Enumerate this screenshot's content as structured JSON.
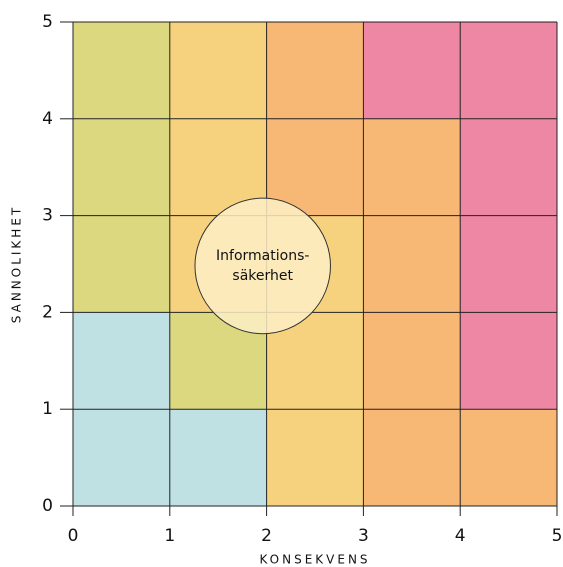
{
  "chart_data": {
    "type": "bubble",
    "xlabel": "KONSEKVENS",
    "ylabel": "SANNOLIKHET",
    "xlim": [
      0,
      5
    ],
    "ylim": [
      0,
      5
    ],
    "xticks": [
      0,
      1,
      2,
      3,
      4,
      5
    ],
    "yticks": [
      0,
      1,
      2,
      3,
      4,
      5
    ],
    "grid": true,
    "cell_colors": [
      [
        "#bfe1e3",
        "#bfe1e3",
        "#f7d27e",
        "#f6b874",
        "#f6b874"
      ],
      [
        "#bfe1e3",
        "#dcd880",
        "#f7d27e",
        "#f6b874",
        "#ee87a4"
      ],
      [
        "#dcd880",
        "#f7d27e",
        "#f7d27e",
        "#f6b874",
        "#ee87a4"
      ],
      [
        "#dcd880",
        "#f7d27e",
        "#f6b874",
        "#f6b874",
        "#ee87a4"
      ],
      [
        "#dcd880",
        "#f7d27e",
        "#f6b874",
        "#ee87a4",
        "#ee87a4"
      ]
    ],
    "points": [
      {
        "label": [
          "Informations-",
          "säkerhet"
        ],
        "x": 1.96,
        "y": 2.48,
        "size": 0.7,
        "color": "#fdefc4"
      }
    ]
  }
}
